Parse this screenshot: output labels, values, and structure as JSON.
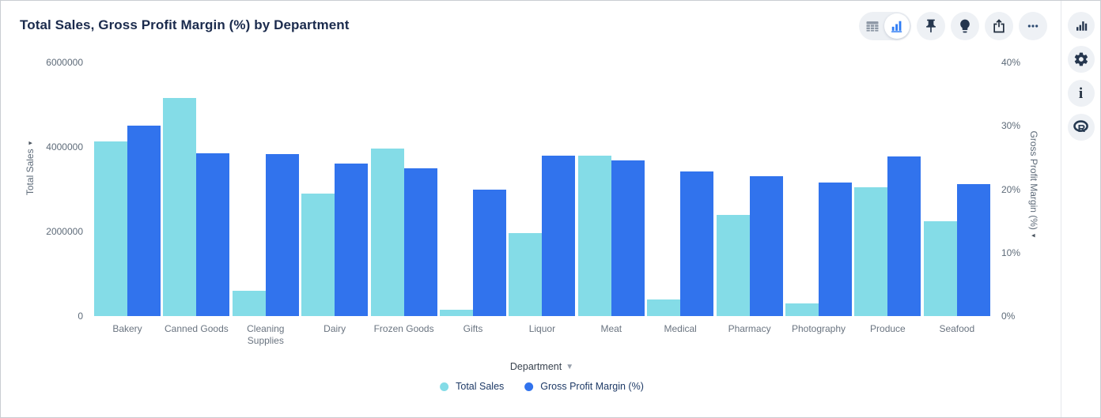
{
  "header": {
    "title": "Total Sales, Gross Profit Margin (%) by Department"
  },
  "toolbar": {
    "view_toggle": [
      {
        "icon": "table-icon",
        "active": false
      },
      {
        "icon": "bar-chart-icon",
        "active": true
      }
    ],
    "buttons": [
      {
        "icon": "pin-icon"
      },
      {
        "icon": "lightbulb-icon"
      },
      {
        "icon": "export-icon"
      },
      {
        "icon": "more-icon"
      }
    ]
  },
  "side_rail": {
    "buttons": [
      {
        "icon": "chart-type-icon"
      },
      {
        "icon": "settings-gear-icon"
      },
      {
        "icon": "info-icon"
      },
      {
        "icon": "r-logo-icon"
      }
    ]
  },
  "colors": {
    "series_teal": "#84DCE7",
    "series_blue": "#3173ED",
    "accent_blue": "#2E7CF5",
    "icon_navy": "#25364E",
    "button_bg": "#EEF1F5"
  },
  "chart_data": {
    "type": "bar",
    "title": "Total Sales, Gross Profit Margin (%) by Department",
    "categories": [
      "Bakery",
      "Canned Goods",
      "Cleaning Supplies",
      "Dairy",
      "Frozen Goods",
      "Gifts",
      "Liquor",
      "Meat",
      "Medical",
      "Pharmacy",
      "Photography",
      "Produce",
      "Seafood"
    ],
    "series": [
      {
        "name": "Total Sales",
        "axis": "left",
        "color": "#84DCE7",
        "values": [
          4130000,
          5150000,
          600000,
          2900000,
          3960000,
          150000,
          1970000,
          3790000,
          400000,
          2390000,
          300000,
          3050000,
          2240000
        ]
      },
      {
        "name": "Gross Profit Margin (%)",
        "axis": "right",
        "color": "#3173ED",
        "values": [
          30,
          25.7,
          25.6,
          24,
          23.3,
          20,
          25.3,
          24.6,
          22.8,
          22.1,
          21,
          25.2,
          20.8
        ]
      }
    ],
    "xlabel": "Department",
    "left_axis": {
      "label": "Total Sales",
      "ticks": [
        0,
        2000000,
        4000000,
        6000000
      ],
      "min": 0,
      "max": 6000000
    },
    "right_axis": {
      "label": "Gross Profit Margin (%)",
      "ticks": [
        0,
        10,
        20,
        30,
        40
      ],
      "tick_suffix": "%",
      "min": 0,
      "max": 40
    },
    "grid": false,
    "legend_position": "bottom"
  }
}
